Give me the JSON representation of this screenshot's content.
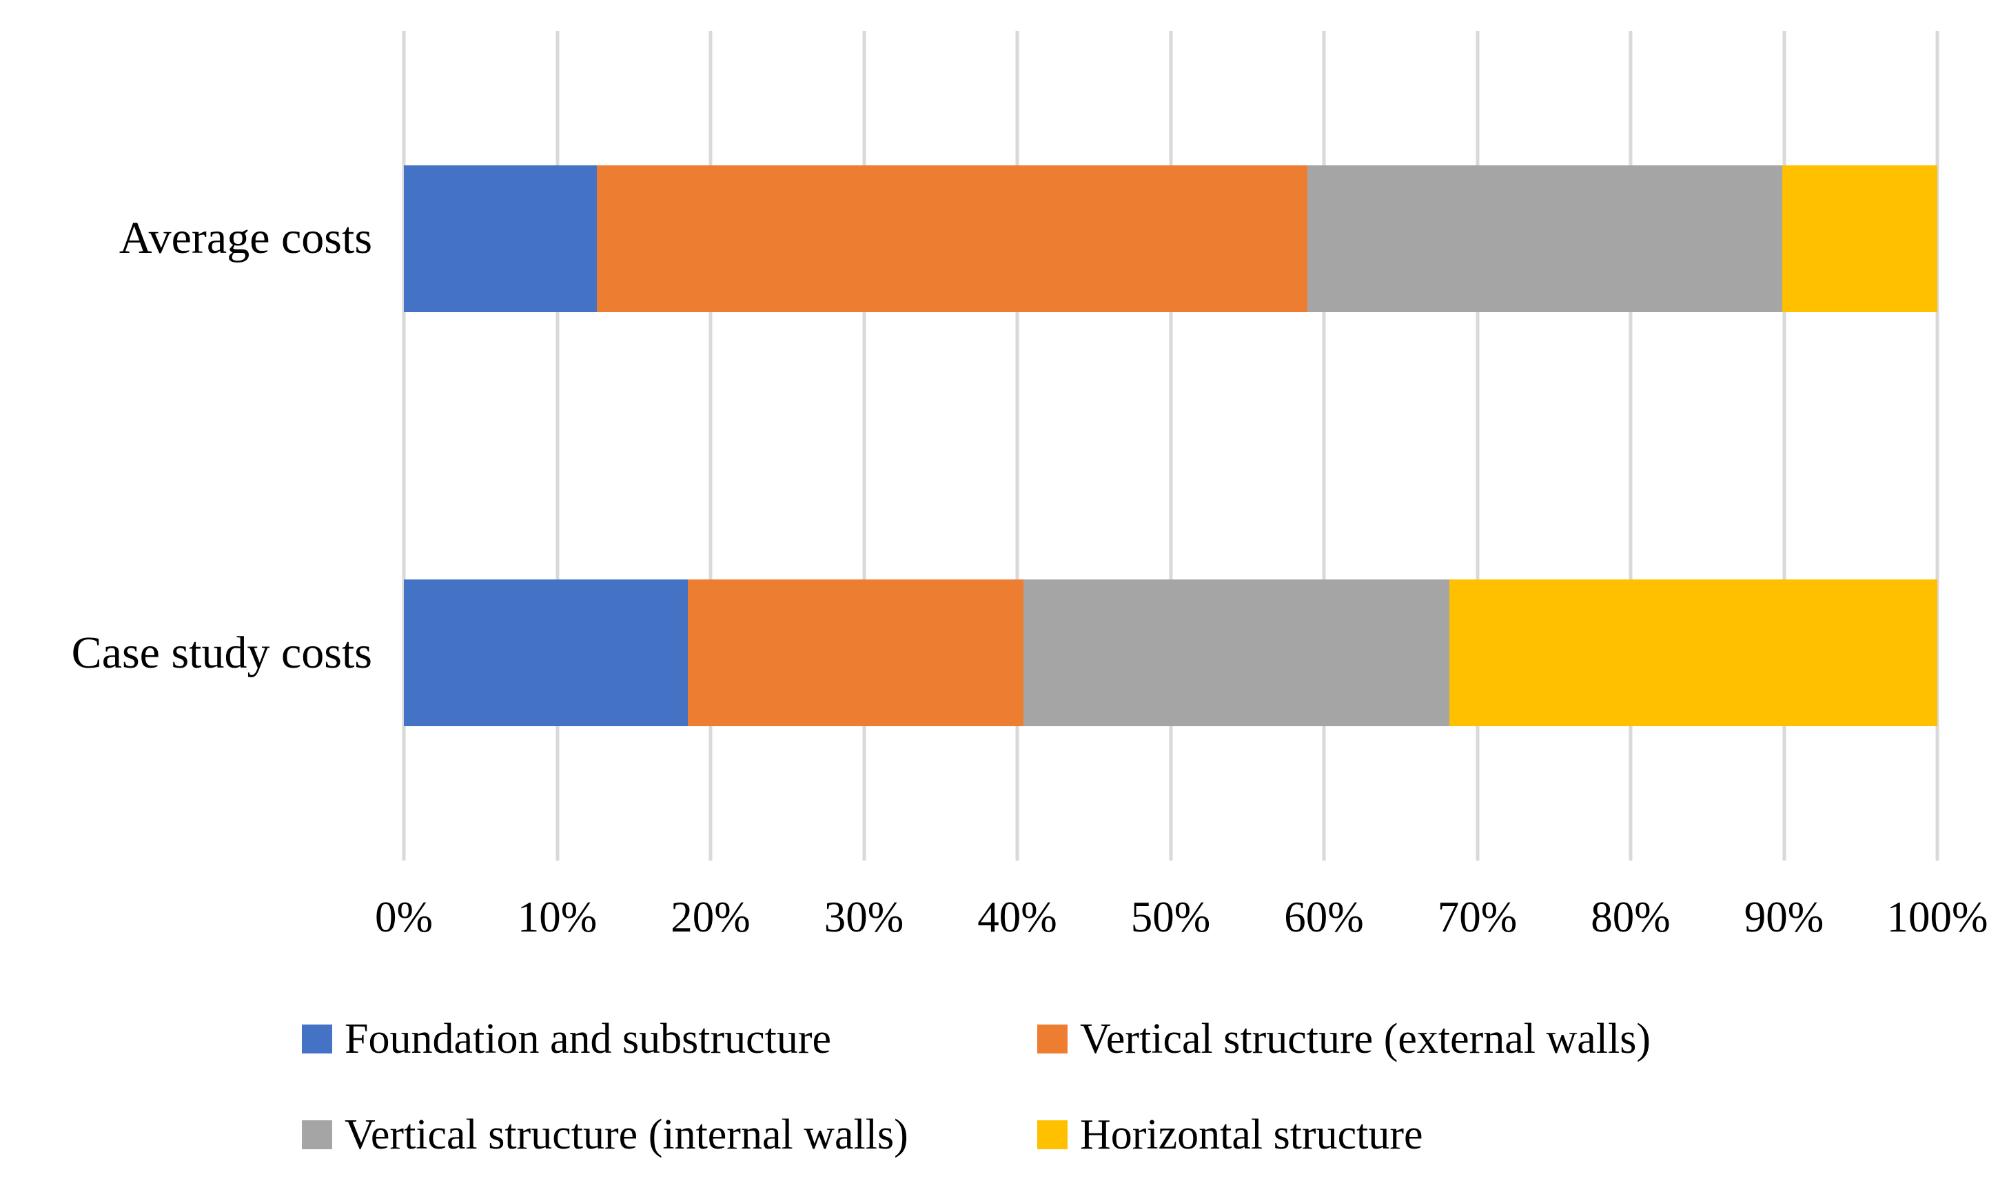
{
  "chart_data": {
    "type": "bar",
    "orientation": "horizontal",
    "stacked": true,
    "units": "percent",
    "categories": [
      "Average costs",
      "Case study costs"
    ],
    "series": [
      {
        "name": "Foundation and substructure",
        "color": "#4472C4",
        "values": [
          12.6,
          18.5
        ]
      },
      {
        "name": "Vertical structure (external walls)",
        "color": "#ED7D31",
        "values": [
          46.3,
          21.9
        ]
      },
      {
        "name": "Vertical structure (internal walls)",
        "color": "#A5A5A5",
        "values": [
          31.0,
          27.8
        ]
      },
      {
        "name": "Horizontal structure",
        "color": "#FFC000",
        "values": [
          10.1,
          31.8
        ]
      }
    ],
    "xlim": [
      0,
      100
    ],
    "x_ticks": [
      "0%",
      "10%",
      "20%",
      "30%",
      "40%",
      "50%",
      "60%",
      "70%",
      "80%",
      "90%",
      "100%"
    ],
    "grid": "vertical gridlines at every 10%",
    "gridline_color": "#D9D9D9",
    "background_color": "#FFFFFF",
    "text_color": "#000000",
    "legend_position": "bottom",
    "legend_rows": [
      [
        "Foundation and substructure",
        "Vertical structure (external walls)"
      ],
      [
        "Vertical structure (internal walls)",
        "Horizontal structure"
      ]
    ]
  }
}
